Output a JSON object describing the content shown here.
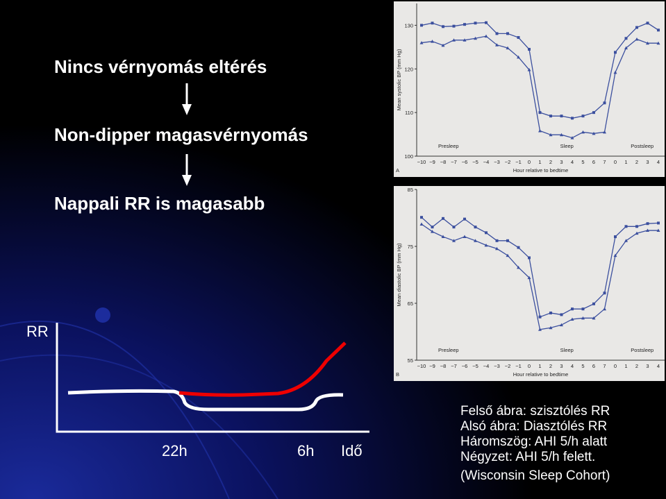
{
  "slide": {
    "lines": [
      "Nincs vérnyomás eltérés",
      "Non-dipper magasvérnyomás",
      "Nappali RR is magasabb"
    ],
    "sketch": {
      "y_label": "RR",
      "x_labels": [
        "22h",
        "6h",
        "Idő"
      ]
    },
    "caption": [
      "Felső ábra: szisztólés RR",
      "Alsó ábra: Diasztólés RR",
      "Háromszög: AHI 5/h alatt",
      "Négyzet: AHI 5/h felett.",
      "(Wisconsin Sleep Cohort)"
    ]
  },
  "chart_data": [
    {
      "type": "line",
      "panel": "A",
      "ylabel": "Mean systolic BP (mm Hg)",
      "xlabel": "Hour relative to bedtime",
      "annotations": [
        "Presleep",
        "Sleep",
        "Postsleep"
      ],
      "categories": [
        "−10",
        "−9",
        "−8",
        "−7",
        "−6",
        "−5",
        "−4",
        "−3",
        "−2",
        "−1",
        "0",
        "1",
        "2",
        "3",
        "4",
        "5",
        "6",
        "7",
        "0",
        "1",
        "2",
        "3",
        "4"
      ],
      "ylim": [
        100,
        135
      ],
      "yticks": [
        100,
        110,
        120,
        130
      ],
      "series": [
        {
          "color": "#3b4f9e",
          "marker": "square",
          "values": [
            130,
            130.5,
            129.7,
            129.8,
            130.2,
            130.5,
            130.6,
            128.1,
            128.1,
            127.2,
            124.5,
            110,
            109.2,
            109.2,
            108.7,
            109.2,
            110,
            112.2,
            123.8,
            127,
            129.5,
            130.5,
            128.9
          ]
        },
        {
          "color": "#3b4f9e",
          "marker": "triangle",
          "values": [
            126,
            126.3,
            125.4,
            126.6,
            126.6,
            127,
            127.5,
            125.5,
            124.8,
            122.7,
            119.8,
            105.8,
            104.9,
            104.9,
            104.2,
            105.5,
            105.2,
            105.5,
            119.2,
            124.8,
            126.8,
            125.9,
            125.9
          ]
        }
      ]
    },
    {
      "type": "line",
      "panel": "B",
      "ylabel": "Mean diastolic BP (mm Hg)",
      "xlabel": "Hour relative to bedtime",
      "annotations": [
        "Presleep",
        "Sleep",
        "Postsleep"
      ],
      "categories": [
        "−10",
        "−9",
        "−8",
        "−7",
        "−6",
        "−5",
        "−4",
        "−3",
        "−2",
        "−1",
        "0",
        "1",
        "2",
        "3",
        "4",
        "5",
        "6",
        "7",
        "0",
        "1",
        "2",
        "3",
        "4"
      ],
      "ylim": [
        55,
        85
      ],
      "yticks": [
        55,
        65,
        75,
        85
      ],
      "series": [
        {
          "color": "#3b4f9e",
          "marker": "square",
          "values": [
            80.1,
            78.4,
            79.9,
            78.4,
            79.8,
            78.4,
            77.4,
            76,
            76,
            74.8,
            73,
            62.6,
            63.3,
            63,
            64,
            64,
            64.9,
            66.8,
            76.7,
            78.5,
            78.5,
            79,
            79.1
          ]
        },
        {
          "color": "#3b4f9e",
          "marker": "triangle",
          "values": [
            78.9,
            77.6,
            76.7,
            76,
            76.7,
            76,
            75.2,
            74.6,
            73.4,
            71.3,
            69.5,
            60.4,
            60.7,
            61.2,
            62.2,
            62.4,
            62.4,
            64,
            73.4,
            76,
            77.3,
            77.8,
            77.8
          ]
        }
      ]
    }
  ]
}
